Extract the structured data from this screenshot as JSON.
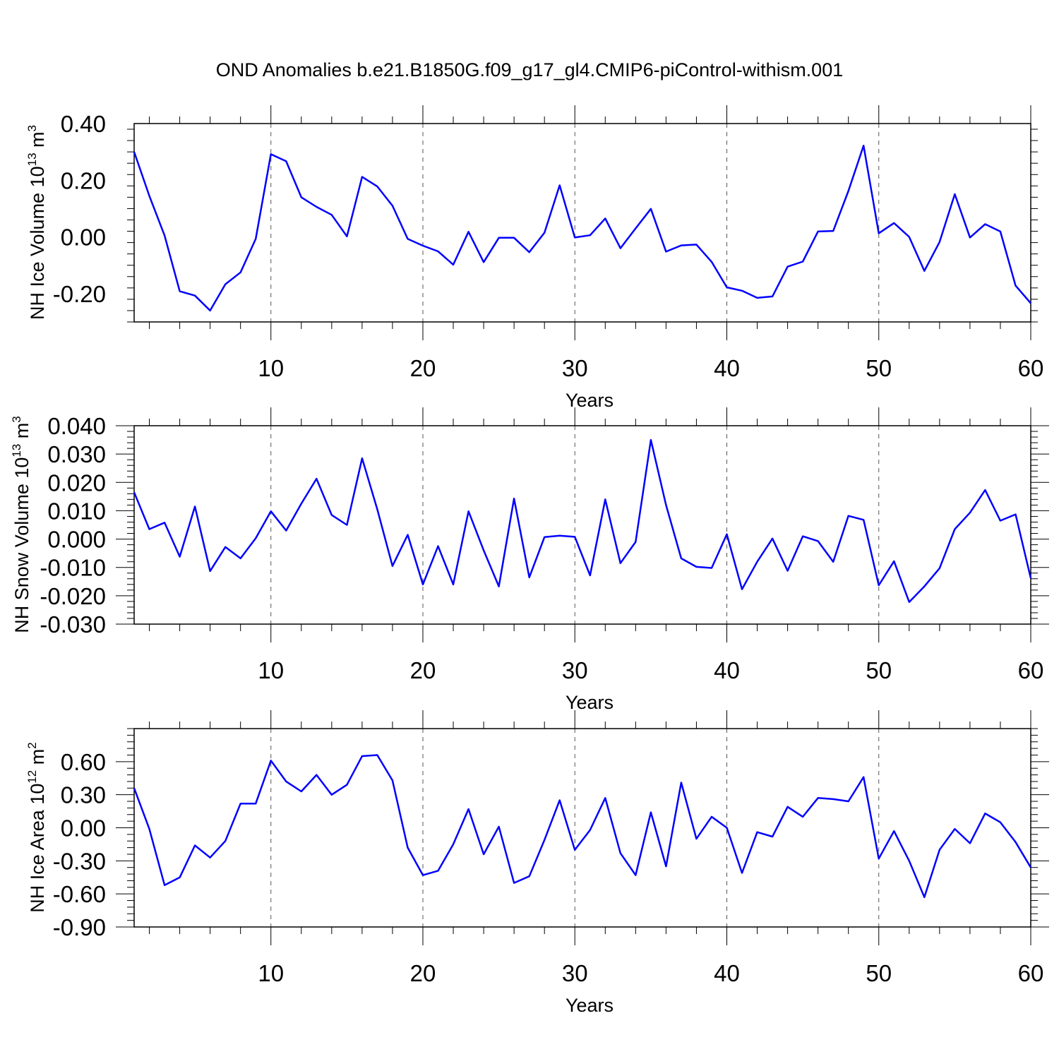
{
  "title": "OND Anomalies b.e21.B1850G.f09_g17_gl4.CMIP6-piControl-withism.001",
  "colors": {
    "line": "#0000ff",
    "axes": "#000000",
    "gridline": "#555555"
  },
  "chart_data": [
    {
      "type": "line",
      "xlabel": "Years",
      "ylabel": "NH Ice Volume 10",
      "ylabel_exp": "13",
      "ylabel_unit": " m",
      "ylabel_unit_exp": "3",
      "xlim": [
        1,
        60
      ],
      "ylim": [
        -0.3,
        0.4
      ],
      "xticks": [
        10,
        20,
        30,
        40,
        50,
        60
      ],
      "xtick_labels": [
        "10",
        "20",
        "30",
        "40",
        "50",
        "60"
      ],
      "yticks": [
        -0.2,
        0.0,
        0.2,
        0.4
      ],
      "ytick_labels": [
        "-0.20",
        "0.00",
        "0.20",
        "0.40"
      ],
      "vgrid": [
        10,
        20,
        30,
        40,
        50
      ],
      "x": [
        1,
        2,
        3,
        4,
        5,
        6,
        7,
        8,
        9,
        10,
        11,
        12,
        13,
        14,
        15,
        16,
        17,
        18,
        19,
        20,
        21,
        22,
        23,
        24,
        25,
        26,
        27,
        28,
        29,
        30,
        31,
        32,
        33,
        34,
        35,
        36,
        37,
        38,
        39,
        40,
        41,
        42,
        43,
        44,
        45,
        46,
        47,
        48,
        49,
        50,
        51,
        52,
        53,
        54,
        55,
        56,
        57,
        58,
        59,
        60
      ],
      "y": [
        0.3,
        0.145,
        0.005,
        -0.192,
        -0.207,
        -0.26,
        -0.167,
        -0.125,
        -0.007,
        0.292,
        0.267,
        0.14,
        0.106,
        0.078,
        0.002,
        0.212,
        0.178,
        0.11,
        -0.007,
        -0.031,
        -0.051,
        -0.098,
        0.018,
        -0.089,
        -0.003,
        -0.003,
        -0.054,
        0.015,
        0.182,
        -0.002,
        0.006,
        0.065,
        -0.04,
        0.03,
        0.099,
        -0.052,
        -0.03,
        -0.027,
        -0.088,
        -0.178,
        -0.19,
        -0.215,
        -0.21,
        -0.105,
        -0.087,
        0.019,
        0.021,
        0.162,
        0.322,
        0.013,
        0.049,
        0.0,
        -0.12,
        -0.018,
        0.151,
        -0.002,
        0.045,
        0.019,
        -0.172,
        -0.234
      ]
    },
    {
      "type": "line",
      "xlabel": "Years",
      "ylabel": "NH Snow Volume 10",
      "ylabel_exp": "13",
      "ylabel_unit": " m",
      "ylabel_unit_exp": "3",
      "xlim": [
        1,
        60
      ],
      "ylim": [
        -0.03,
        0.04
      ],
      "xticks": [
        10,
        20,
        30,
        40,
        50,
        60
      ],
      "xtick_labels": [
        "10",
        "20",
        "30",
        "40",
        "50",
        "60"
      ],
      "yticks": [
        -0.03,
        -0.02,
        -0.01,
        0.0,
        0.01,
        0.02,
        0.03,
        0.04
      ],
      "ytick_labels": [
        "-0.030",
        "-0.020",
        "-0.010",
        "0.000",
        "0.010",
        "0.020",
        "0.030",
        "0.040"
      ],
      "vgrid": [
        10,
        20,
        30,
        40,
        50
      ],
      "x": [
        1,
        2,
        3,
        4,
        5,
        6,
        7,
        8,
        9,
        10,
        11,
        12,
        13,
        14,
        15,
        16,
        17,
        18,
        19,
        20,
        21,
        22,
        23,
        24,
        25,
        26,
        27,
        28,
        29,
        30,
        31,
        32,
        33,
        34,
        35,
        36,
        37,
        38,
        39,
        40,
        41,
        42,
        43,
        44,
        45,
        46,
        47,
        48,
        49,
        50,
        51,
        52,
        53,
        54,
        55,
        56,
        57,
        58,
        59,
        60
      ],
      "y": [
        0.0165,
        0.0035,
        0.0058,
        -0.0062,
        0.0115,
        -0.0113,
        -0.0028,
        -0.0068,
        0.0003,
        0.0098,
        0.003,
        0.0125,
        0.0213,
        0.0085,
        0.005,
        0.0285,
        0.0105,
        -0.0095,
        0.0015,
        -0.016,
        -0.0025,
        -0.016,
        0.0098,
        -0.004,
        -0.0167,
        0.0143,
        -0.0135,
        0.0007,
        0.0012,
        0.0008,
        -0.0128,
        0.014,
        -0.0085,
        -0.001,
        0.035,
        0.012,
        -0.0068,
        -0.0098,
        -0.0102,
        0.0017,
        -0.0177,
        -0.008,
        0.0002,
        -0.0112,
        0.001,
        -0.0007,
        -0.008,
        0.0082,
        0.0068,
        -0.0163,
        -0.0078,
        -0.0222,
        -0.0167,
        -0.0103,
        0.0035,
        0.0093,
        0.0173,
        0.0065,
        0.0087,
        -0.0138
      ]
    },
    {
      "type": "line",
      "xlabel": "Years",
      "ylabel": "NH Ice Area 10",
      "ylabel_exp": "12",
      "ylabel_unit": " m",
      "ylabel_unit_exp": "2",
      "xlim": [
        1,
        60
      ],
      "ylim": [
        -0.9,
        0.9
      ],
      "xticks": [
        10,
        20,
        30,
        40,
        50,
        60
      ],
      "xtick_labels": [
        "10",
        "20",
        "30",
        "40",
        "50",
        "60"
      ],
      "yticks": [
        -0.9,
        -0.6,
        -0.3,
        0.0,
        0.3,
        0.6
      ],
      "ytick_labels": [
        "-0.90",
        "-0.60",
        "-0.30",
        "0.00",
        "0.30",
        "0.60"
      ],
      "vgrid": [
        10,
        20,
        30,
        40,
        50
      ],
      "x": [
        1,
        2,
        3,
        4,
        5,
        6,
        7,
        8,
        9,
        10,
        11,
        12,
        13,
        14,
        15,
        16,
        17,
        18,
        19,
        20,
        21,
        22,
        23,
        24,
        25,
        26,
        27,
        28,
        29,
        30,
        31,
        32,
        33,
        34,
        35,
        36,
        37,
        38,
        39,
        40,
        41,
        42,
        43,
        44,
        45,
        46,
        47,
        48,
        49,
        50,
        51,
        52,
        53,
        54,
        55,
        56,
        57,
        58,
        59,
        60
      ],
      "y": [
        0.36,
        -0.01,
        -0.52,
        -0.45,
        -0.16,
        -0.27,
        -0.12,
        0.22,
        0.22,
        0.61,
        0.42,
        0.33,
        0.48,
        0.3,
        0.39,
        0.65,
        0.66,
        0.43,
        -0.18,
        -0.43,
        -0.39,
        -0.15,
        0.17,
        -0.24,
        0.01,
        -0.5,
        -0.44,
        -0.11,
        0.25,
        -0.2,
        -0.02,
        0.27,
        -0.23,
        -0.43,
        0.14,
        -0.35,
        0.41,
        -0.1,
        0.1,
        0.0,
        -0.41,
        -0.04,
        -0.08,
        0.19,
        0.1,
        0.27,
        0.26,
        0.24,
        0.46,
        -0.28,
        -0.03,
        -0.3,
        -0.63,
        -0.2,
        -0.01,
        -0.14,
        0.13,
        0.05,
        -0.13,
        -0.36
      ]
    }
  ]
}
